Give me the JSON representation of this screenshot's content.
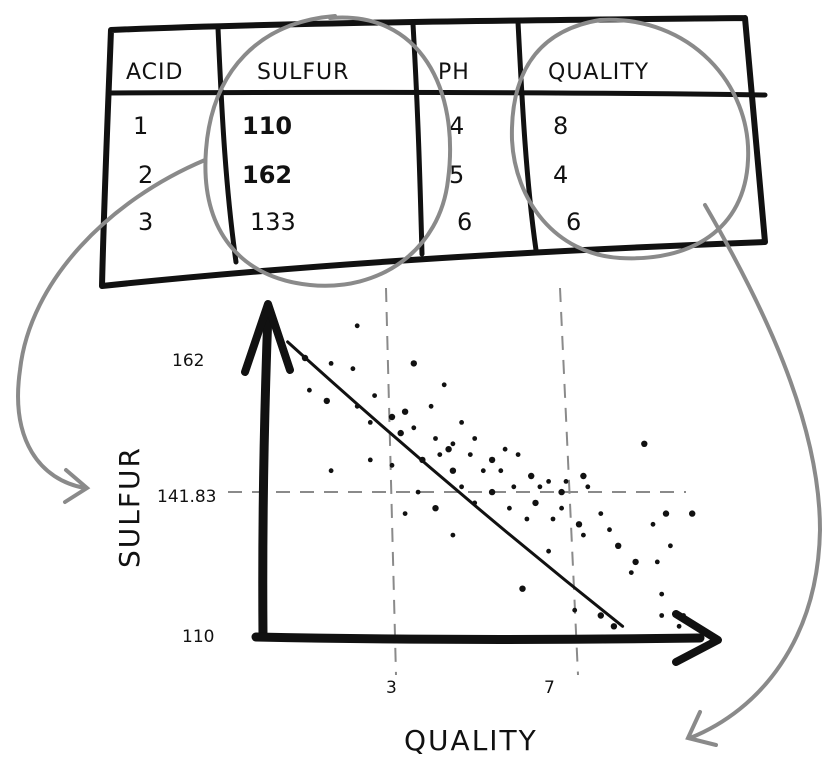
{
  "table": {
    "headers": [
      "ACID",
      "SULFUR",
      "PH",
      "QUALITY"
    ],
    "rows": [
      [
        "1",
        "110",
        "4",
        "8"
      ],
      [
        "2",
        "162",
        "5",
        "4"
      ],
      [
        "3",
        "133",
        "6",
        "6"
      ]
    ]
  },
  "chart_data": {
    "type": "scatter",
    "xlabel": "QUALITY",
    "ylabel": "SULFUR",
    "x_ticks": [
      "3",
      "7"
    ],
    "y_ticks": [
      "162",
      "141.83",
      "110"
    ],
    "trend_line": {
      "from": [
        0.6,
        165
      ],
      "to": [
        8.3,
        112
      ]
    },
    "points": [
      [
        1.0,
        162
      ],
      [
        1.6,
        161
      ],
      [
        2.1,
        160
      ],
      [
        3.5,
        161
      ],
      [
        4.2,
        157
      ],
      [
        1.1,
        156
      ],
      [
        1.5,
        154
      ],
      [
        2.2,
        153
      ],
      [
        2.6,
        155
      ],
      [
        3.3,
        152
      ],
      [
        3.9,
        153
      ],
      [
        2.5,
        150
      ],
      [
        3.0,
        151
      ],
      [
        3.5,
        149
      ],
      [
        4.6,
        150
      ],
      [
        3.2,
        148
      ],
      [
        4.0,
        147
      ],
      [
        4.4,
        146
      ],
      [
        4.3,
        145
      ],
      [
        4.9,
        147
      ],
      [
        5.6,
        145
      ],
      [
        8.8,
        146
      ],
      [
        2.5,
        143
      ],
      [
        3.0,
        142
      ],
      [
        3.7,
        143
      ],
      [
        4.1,
        144
      ],
      [
        4.8,
        144
      ],
      [
        5.3,
        143
      ],
      [
        5.9,
        144
      ],
      [
        1.6,
        141
      ],
      [
        4.4,
        141
      ],
      [
        5.1,
        141
      ],
      [
        5.5,
        141
      ],
      [
        6.2,
        140
      ],
      [
        6.6,
        139
      ],
      [
        7.0,
        139
      ],
      [
        7.4,
        140
      ],
      [
        3.6,
        137
      ],
      [
        4.6,
        138
      ],
      [
        5.3,
        137
      ],
      [
        5.8,
        138
      ],
      [
        6.4,
        138
      ],
      [
        6.9,
        137
      ],
      [
        7.5,
        138
      ],
      [
        3.3,
        133
      ],
      [
        4.0,
        134
      ],
      [
        4.9,
        135
      ],
      [
        5.7,
        134
      ],
      [
        6.3,
        135
      ],
      [
        6.9,
        134
      ],
      [
        7.8,
        133
      ],
      [
        9.3,
        133
      ],
      [
        6.1,
        132
      ],
      [
        6.7,
        132
      ],
      [
        7.3,
        131
      ],
      [
        8.0,
        130
      ],
      [
        9.0,
        131
      ],
      [
        9.9,
        133
      ],
      [
        4.4,
        129
      ],
      [
        7.4,
        129
      ],
      [
        8.2,
        127
      ],
      [
        9.4,
        127
      ],
      [
        6.6,
        126
      ],
      [
        8.6,
        124
      ],
      [
        9.1,
        124
      ],
      [
        8.5,
        122
      ],
      [
        6.0,
        119
      ],
      [
        9.2,
        118
      ],
      [
        7.2,
        115
      ],
      [
        7.8,
        114
      ],
      [
        9.2,
        114
      ],
      [
        9.7,
        114
      ],
      [
        8.1,
        112
      ],
      [
        9.6,
        112
      ],
      [
        9.0,
        110
      ],
      [
        10.0,
        110
      ],
      [
        2.2,
        168
      ]
    ]
  }
}
